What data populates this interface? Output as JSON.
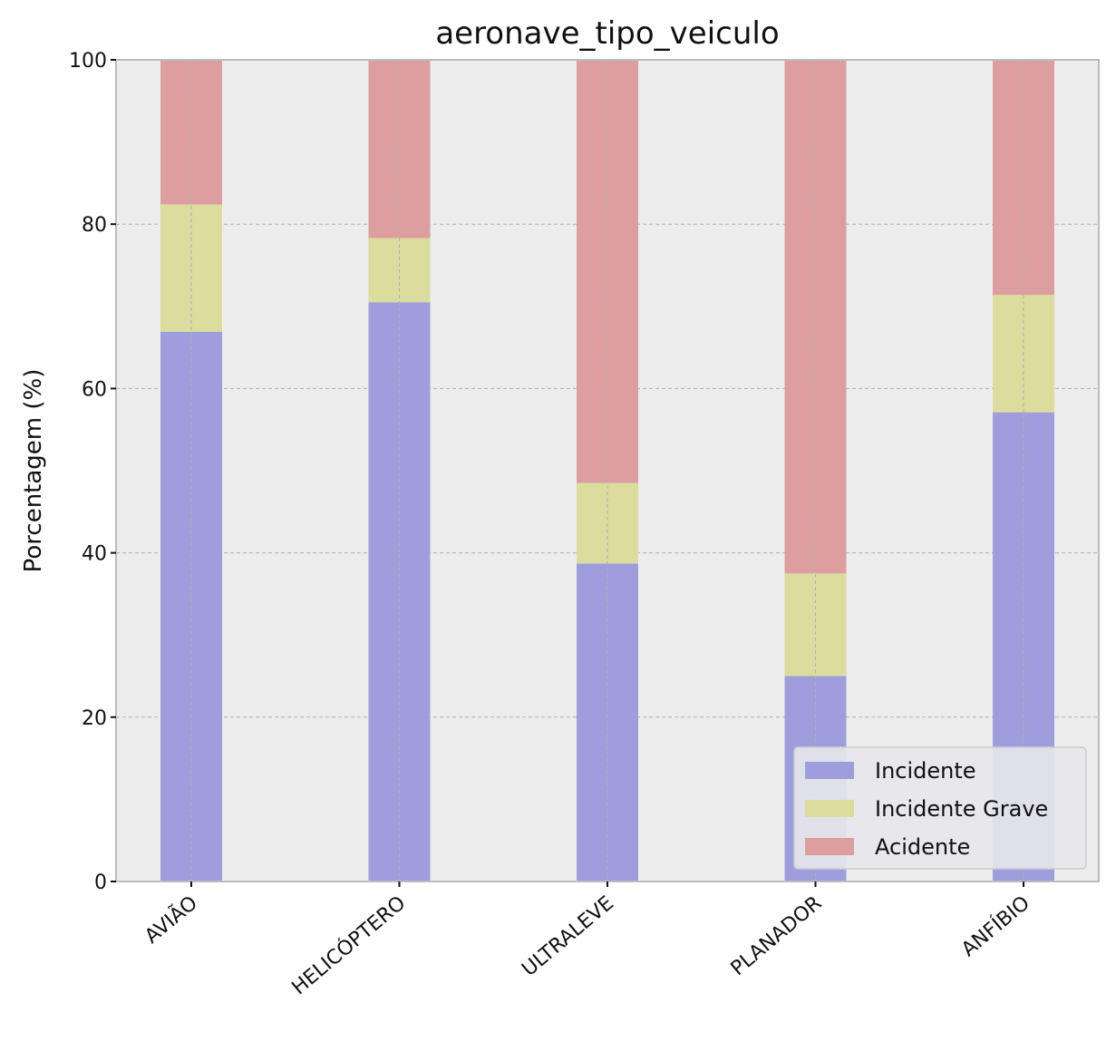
{
  "chart_data": {
    "type": "bar",
    "stacked": true,
    "title": "aeronave_tipo_veiculo",
    "xlabel": "",
    "ylabel": "Porcentagem (%)",
    "ylim": [
      0,
      100
    ],
    "yticks": [
      0,
      20,
      40,
      60,
      80,
      100
    ],
    "grid": true,
    "legend_position": "bottom-right",
    "categories": [
      "AVIÃO",
      "HELICÓPTERO",
      "ULTRALEVE",
      "PLANADOR",
      "ANFÍBIO"
    ],
    "series": [
      {
        "name": "Incidente",
        "color": "#9e9edc",
        "values": [
          66.9,
          70.5,
          38.7,
          25.0,
          57.1
        ]
      },
      {
        "name": "Incidente Grave",
        "color": "#dcdc9e",
        "values": [
          15.5,
          7.8,
          9.8,
          12.5,
          14.3
        ]
      },
      {
        "name": "Acidente",
        "color": "#dc9e9e",
        "values": [
          17.6,
          21.7,
          51.5,
          62.5,
          28.6
        ]
      }
    ],
    "colors": {
      "background": "#ededed",
      "grid": "#b0b0b0",
      "frame": "#bcbcbc"
    }
  }
}
